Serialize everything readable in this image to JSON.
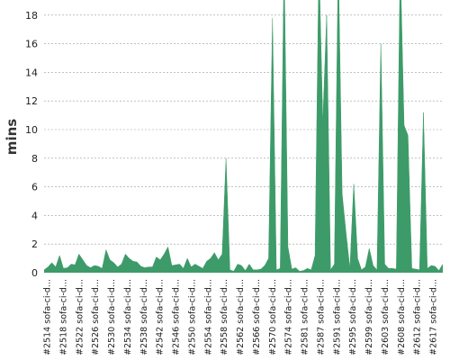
{
  "chart_data": {
    "type": "area",
    "title": "",
    "xlabel": "",
    "ylabel": "mins",
    "ylim": [
      0,
      19
    ],
    "yticks": [
      0,
      2,
      4,
      6,
      8,
      10,
      12,
      14,
      16,
      18
    ],
    "grid": true,
    "color": "#3d9b69",
    "xtick_labels": [
      "#2514 sofa-ci-d...",
      "#2518 sofa-ci-d...",
      "#2522 sofa-ci-d...",
      "#2526 sofa-ci-d...",
      "#2530 sofa-ci-d...",
      "#2534 sofa-ci-d...",
      "#2538 sofa-ci-d...",
      "#2542 sofa-ci-d...",
      "#2546 sofa-ci-d...",
      "#2550 sofa-ci-d...",
      "#2554 sofa-ci-d...",
      "#2558 sofa-ci-d...",
      "#2562 sofa-ci-d...",
      "#2566 sofa-ci-d...",
      "#2570 sofa-ci-d...",
      "#2574 sofa-ci-d...",
      "#2581 sofa-ci-d...",
      "#2587 sofa-ci-d...",
      "#2591 sofa-ci-d...",
      "#2595 sofa-ci-d...",
      "#2599 sofa-ci-d...",
      "#2603 sofa-ci-d...",
      "#2608 sofa-ci-d...",
      "#2612 sofa-ci-d...",
      "#2617 sofa-ci-d..."
    ],
    "values": [
      0.2,
      0.4,
      0.7,
      0.4,
      1.2,
      0.3,
      0.35,
      0.6,
      0.55,
      1.3,
      0.9,
      0.5,
      0.35,
      0.5,
      0.45,
      0.3,
      1.6,
      0.9,
      0.7,
      0.4,
      0.6,
      1.3,
      1.0,
      0.8,
      0.75,
      0.45,
      0.35,
      0.4,
      0.4,
      1.1,
      0.9,
      1.3,
      1.8,
      0.5,
      0.55,
      0.6,
      0.3,
      1.0,
      0.4,
      0.6,
      0.45,
      0.3,
      0.8,
      1.0,
      1.4,
      0.9,
      1.3,
      8.0,
      0.2,
      0.1,
      0.6,
      0.5,
      0.15,
      0.6,
      0.2,
      0.2,
      0.25,
      0.5,
      1.0,
      17.8,
      0.2,
      0.3,
      22.0,
      1.8,
      0.25,
      0.35,
      0.1,
      0.15,
      0.3,
      0.2,
      1.2,
      22.0,
      10.5,
      18.0,
      0.2,
      0.6,
      22.0,
      5.5,
      2.8,
      0.3,
      6.2,
      1.0,
      0.2,
      0.4,
      1.7,
      0.5,
      0.2,
      16.0,
      0.6,
      0.3,
      0.3,
      0.25,
      22.0,
      10.3,
      9.6,
      0.3,
      0.25,
      0.2,
      11.2,
      0.3,
      0.5,
      0.45,
      0.15,
      0.6
    ]
  }
}
